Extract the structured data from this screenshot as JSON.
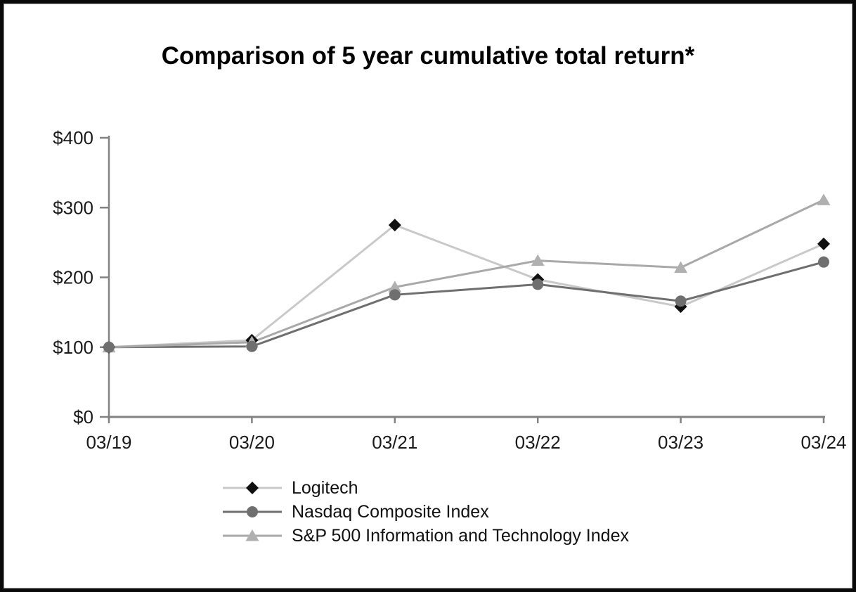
{
  "chart_data": {
    "type": "line",
    "title": "Comparison of 5 year cumulative total return*",
    "categories": [
      "03/19",
      "03/20",
      "03/21",
      "03/22",
      "03/23",
      "03/24"
    ],
    "series": [
      {
        "name": "Logitech",
        "marker": "diamond",
        "line_color": "#c9c9c9",
        "marker_color": "#101010",
        "values": [
          100,
          110,
          275,
          197,
          158,
          248
        ]
      },
      {
        "name": "Nasdaq Composite Index",
        "marker": "circle",
        "line_color": "#6f6f6f",
        "marker_color": "#6f6f6f",
        "values": [
          100,
          101,
          175,
          190,
          166,
          222
        ]
      },
      {
        "name": "S&P 500 Information and Technology Index",
        "marker": "triangle",
        "line_color": "#a9a9a9",
        "marker_color": "#b0b0b0",
        "values": [
          100,
          107,
          186,
          224,
          214,
          311
        ]
      }
    ],
    "xlabel": "",
    "ylabel": "",
    "ylim": [
      0,
      400
    ],
    "ytick_values": [
      0,
      100,
      200,
      300,
      400
    ],
    "ytick_labels": [
      "$0",
      "$100",
      "$200",
      "$300",
      "$400"
    ],
    "grid": false,
    "legend_position": "bottom",
    "axis_color": "#828282",
    "tick_text_color": "#1a1a1a"
  }
}
